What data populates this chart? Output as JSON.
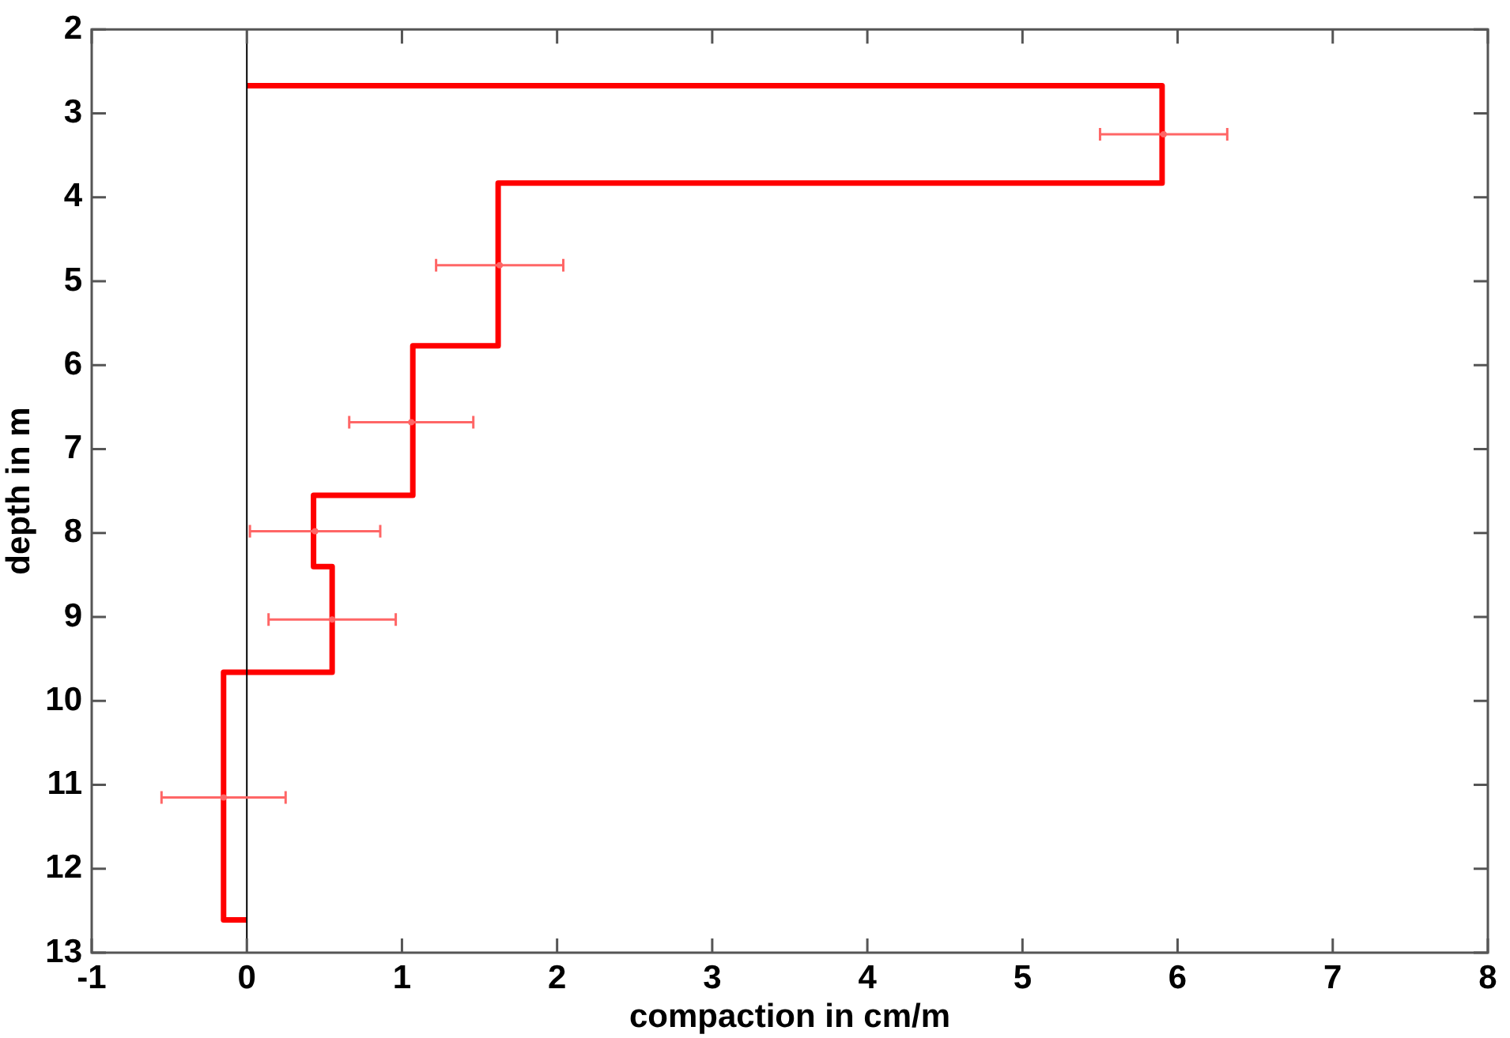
{
  "chart_data": {
    "type": "line",
    "xlabel": "compaction in cm/m",
    "ylabel": "depth in m",
    "xlim": [
      -1,
      8
    ],
    "xticks": [
      -1,
      0,
      1,
      2,
      3,
      4,
      5,
      6,
      7,
      8
    ],
    "ylim": [
      13,
      2
    ],
    "yticks": [
      2,
      3,
      4,
      5,
      6,
      7,
      8,
      9,
      10,
      11,
      12,
      13
    ],
    "grid": false,
    "legend": false,
    "ref_lines": [
      {
        "axis": "x",
        "value": 0,
        "color": "#000000"
      }
    ],
    "series": [
      {
        "color": "#ff0000",
        "marker": "none",
        "x": [
          0,
          5.9,
          5.9,
          1.62,
          1.62,
          1.07,
          1.07,
          0.43,
          0.43,
          0.55,
          0.55,
          -0.15,
          -0.15,
          0
        ],
        "values": [
          2.67,
          2.67,
          3.83,
          3.83,
          5.77,
          5.77,
          7.55,
          7.55,
          8.4,
          8.4,
          9.66,
          9.66,
          12.61,
          12.61
        ]
      },
      {
        "type": "scatter",
        "color": "#ff6666",
        "marker": "circle",
        "x": [
          5.91,
          1.63,
          1.06,
          0.44,
          0.55,
          -0.15
        ],
        "values": [
          3.25,
          4.81,
          6.68,
          7.98,
          9.03,
          11.15
        ],
        "xerrors": [
          0.41,
          0.41,
          0.4,
          0.42,
          0.41,
          0.4
        ]
      }
    ]
  }
}
